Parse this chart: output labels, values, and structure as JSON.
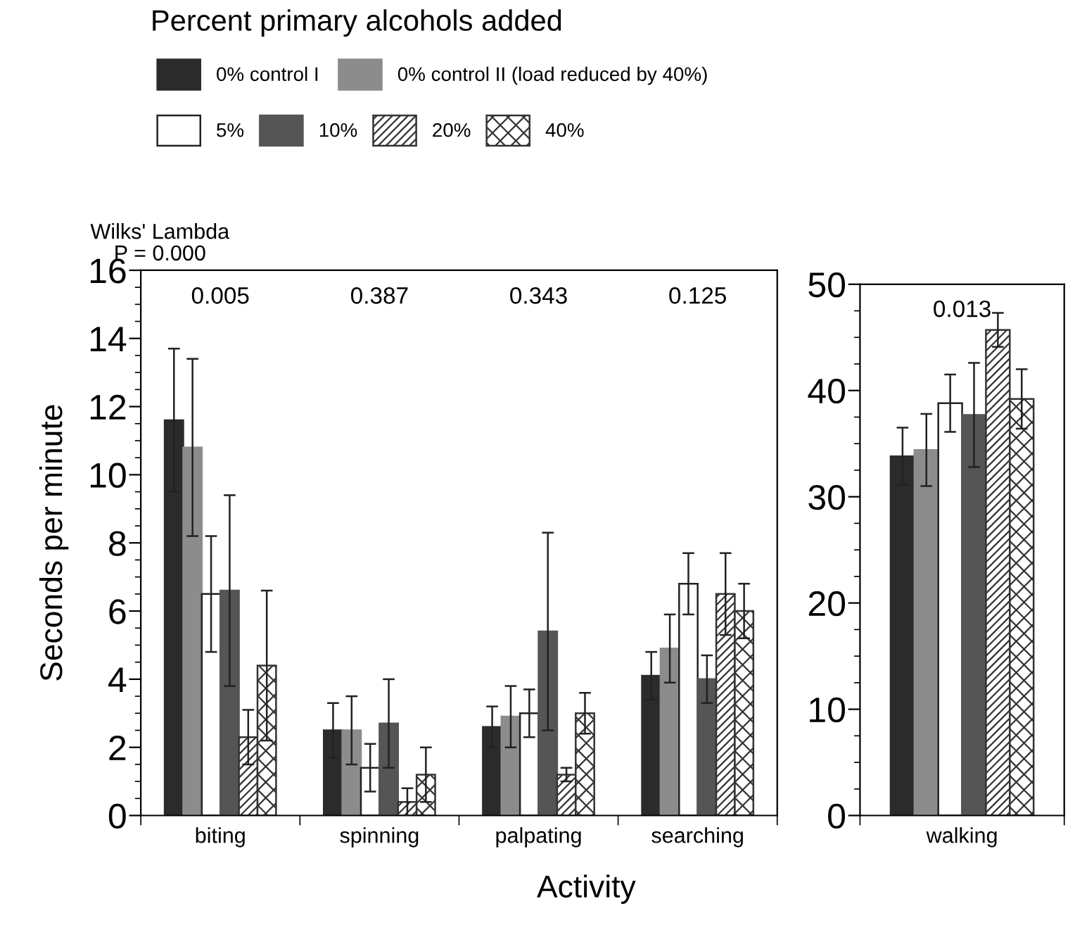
{
  "chart_data": [
    {
      "type": "bar",
      "legend_title": "Percent primary alcohols added",
      "ylabel": "Seconds per minute",
      "xlabel": "Activity",
      "categories": [
        "biting",
        "spinning",
        "palpating",
        "searching"
      ],
      "series": [
        {
          "name": "0% control I",
          "color": "#2b2b2b",
          "values": [
            11.6,
            2.5,
            2.6,
            4.1
          ],
          "errors": [
            2.1,
            0.8,
            0.6,
            0.7
          ]
        },
        {
          "name": "0% control II (load reduced by 40%)",
          "color": "#8c8c8c",
          "values": [
            10.8,
            2.5,
            2.9,
            4.9
          ],
          "errors": [
            2.6,
            1.0,
            0.9,
            1.0
          ]
        },
        {
          "name": "5%",
          "color": "#ffffff",
          "values": [
            6.5,
            1.4,
            3.0,
            6.8
          ],
          "errors": [
            1.7,
            0.7,
            0.7,
            0.9
          ]
        },
        {
          "name": "10%",
          "color": "#555555",
          "values": [
            6.6,
            2.7,
            5.4,
            4.0
          ],
          "errors": [
            2.8,
            1.3,
            2.9,
            0.7
          ]
        },
        {
          "name": "20%",
          "color": "#333333",
          "values": [
            2.3,
            0.4,
            1.2,
            6.5
          ],
          "errors": [
            0.8,
            0.4,
            0.2,
            1.2
          ]
        },
        {
          "name": "40%",
          "color": "#333333",
          "values": [
            4.4,
            1.2,
            3.0,
            6.0
          ],
          "errors": [
            2.2,
            0.8,
            0.6,
            0.8
          ]
        }
      ],
      "ylim": [
        0,
        16
      ],
      "yticks": [
        0,
        2,
        4,
        6,
        8,
        10,
        12,
        14,
        16
      ],
      "legend": "top",
      "annotations": [
        "Wilks' Lambda\nP = 0.000",
        "0.005",
        "0.387",
        "0.343",
        "0.125"
      ]
    },
    {
      "type": "bar",
      "categories": [
        "walking"
      ],
      "series": [
        {
          "color": "#2b2b2b",
          "values": [
            33.8
          ],
          "errors": [
            2.7
          ]
        },
        {
          "color": "#8c8c8c",
          "values": [
            34.4
          ],
          "errors": [
            3.4
          ]
        },
        {
          "color": "#ffffff",
          "values": [
            38.8
          ],
          "errors": [
            2.7
          ]
        },
        {
          "color": "#555555",
          "values": [
            37.7
          ],
          "errors": [
            4.9
          ]
        },
        {
          "color": "#333333",
          "values": [
            45.7
          ],
          "errors": [
            1.6
          ]
        },
        {
          "color": "#333333",
          "values": [
            39.2
          ],
          "errors": [
            2.8
          ]
        }
      ],
      "ylim": [
        0,
        50
      ],
      "yticks": [
        0,
        10,
        20,
        30,
        40,
        50
      ],
      "annotations": [
        "0.013"
      ]
    }
  ]
}
